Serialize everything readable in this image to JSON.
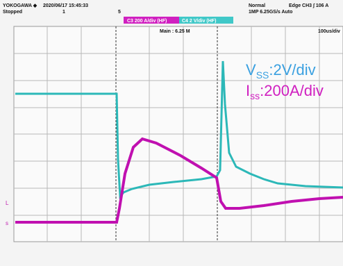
{
  "header": {
    "brand": "YOKOGAWA ◆",
    "datetime": "2020/06/17 15:45:33",
    "status": "Stopped",
    "count": "1",
    "marker": "5",
    "mode": "Normal",
    "trigger": "Edge CH3 ∫ 106 A",
    "sampling": "1MP 6.25GS/s Auto"
  },
  "channels": {
    "ch3": "C3 200 A/div (HF)",
    "ch4": "C4 2 V/div (HF)"
  },
  "screen": {
    "main": "Main : 6.25 M",
    "timebase": "100us/div",
    "ch_marker_1": "L",
    "ch_marker_2": "s"
  },
  "legend": {
    "vss": {
      "symbol": "V",
      "subscript": "SS",
      "scale": ":2V/div"
    },
    "iss": {
      "symbol": "I",
      "subscript": "ss",
      "scale": ":200A/div"
    }
  }
}
